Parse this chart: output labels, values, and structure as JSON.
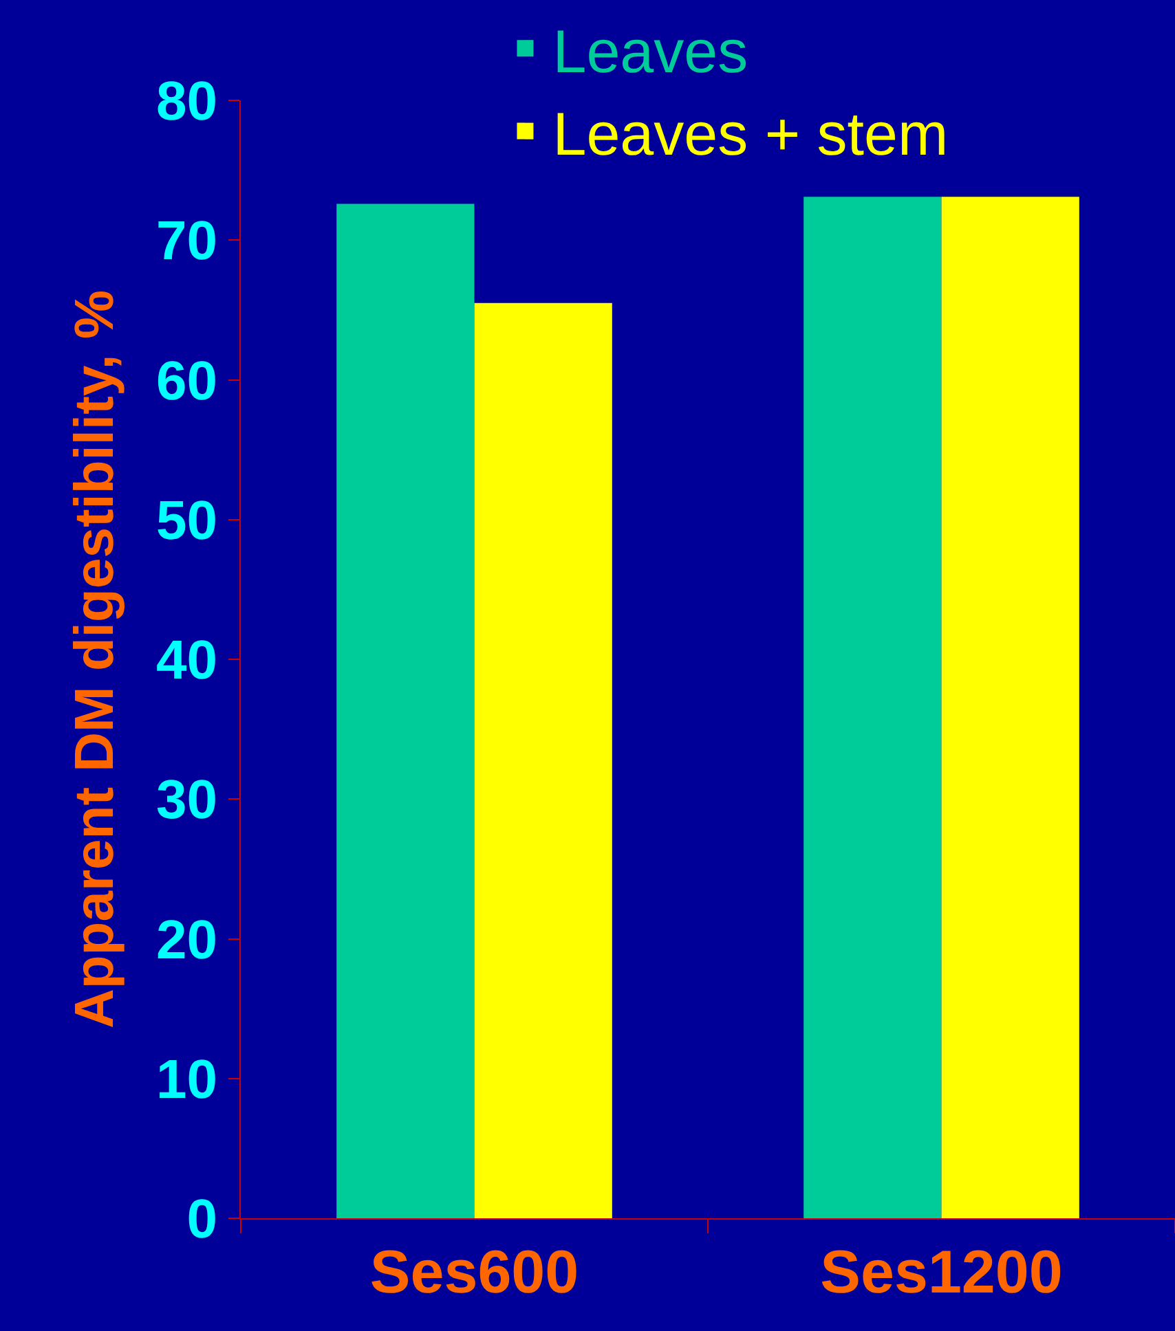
{
  "chart_data": {
    "type": "bar",
    "ylabel": "Apparent DM digestibility, %",
    "categories": [
      "Ses600",
      "Ses1200"
    ],
    "series": [
      {
        "name": "Leaves",
        "color": "#00cc99",
        "values": [
          72.6,
          73.1
        ]
      },
      {
        "name": "Leaves + stem",
        "color": "#ffff00",
        "values": [
          65.5,
          73.1
        ]
      }
    ],
    "ylim": [
      0,
      80
    ],
    "yticks": [
      0,
      10,
      20,
      30,
      40,
      50,
      60,
      70,
      80
    ],
    "grid": false,
    "legend": "top right"
  }
}
